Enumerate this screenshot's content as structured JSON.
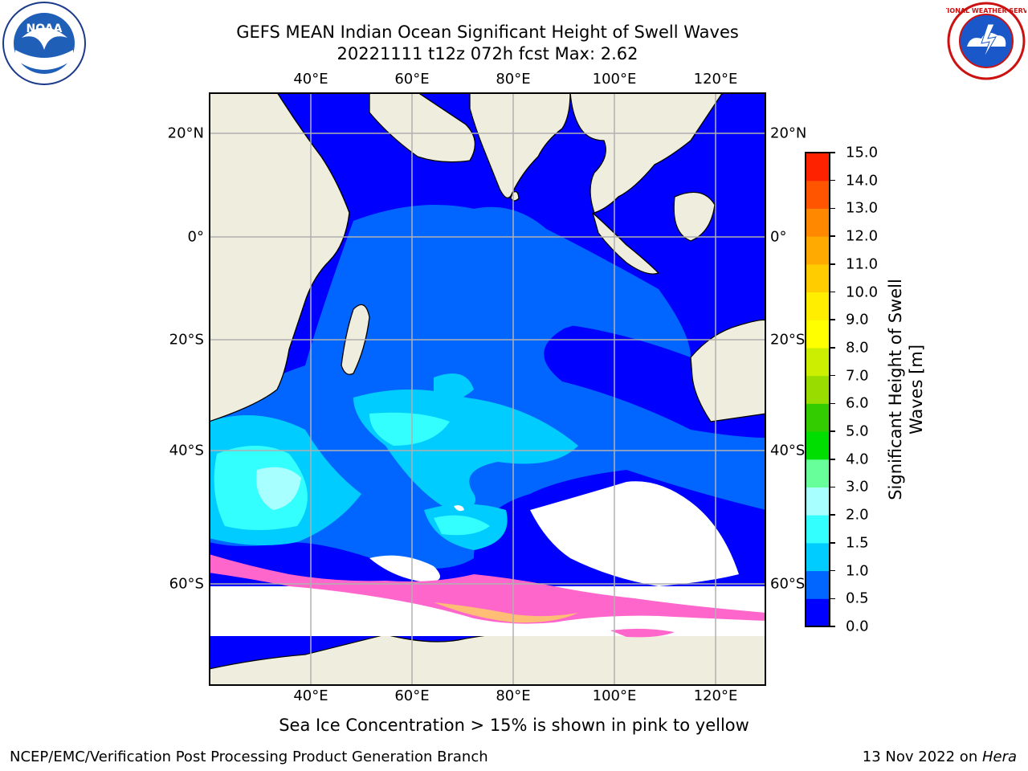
{
  "title_line1": "GEFS MEAN Indian Ocean Significant Height of Swell Waves",
  "title_line2": "20221111 t12z 072h fcst   Max: 2.62",
  "lon_ticks": [
    "40°E",
    "60°E",
    "80°E",
    "100°E",
    "120°E"
  ],
  "lat_ticks": [
    "20°N",
    "0°",
    "20°S",
    "40°S",
    "60°S"
  ],
  "colorbar": {
    "title_line1": "Significant Height of Swell",
    "title_line2": "Waves [m]",
    "ticks": [
      "0.0",
      "0.5",
      "1.0",
      "1.5",
      "2.0",
      "3.0",
      "4.0",
      "5.0",
      "6.0",
      "7.0",
      "8.0",
      "9.0",
      "10.0",
      "11.0",
      "12.0",
      "13.0",
      "14.0",
      "15.0"
    ],
    "colors": [
      "#0000ff",
      "#0066ff",
      "#00ccff",
      "#33ffff",
      "#a8ffff",
      "#66ff99",
      "#00dd00",
      "#33cc00",
      "#99dd00",
      "#ccee00",
      "#ffff00",
      "#ffee00",
      "#ffcc00",
      "#ffaa00",
      "#ff8800",
      "#ff5500",
      "#ff2200"
    ]
  },
  "caption": "Sea Ice Concentration > 15% is shown in pink to yellow",
  "footer_left": "NCEP/EMC/Verification Post Processing Product Generation Branch",
  "footer_right_date": "13 Nov 2022 on ",
  "footer_right_host": "Hera",
  "logos": {
    "left": "NOAA",
    "right": "NATIONAL WEATHER SERVICE"
  },
  "colors": {
    "land": "#efedde",
    "ocean_low": "#0000ff",
    "ocean_mid": "#0066ff",
    "ocean_high": "#00ccff",
    "swell_2": "#a8ffff",
    "ice_pink": "#ff66cc",
    "ice_yellow": "#ffcc66"
  }
}
